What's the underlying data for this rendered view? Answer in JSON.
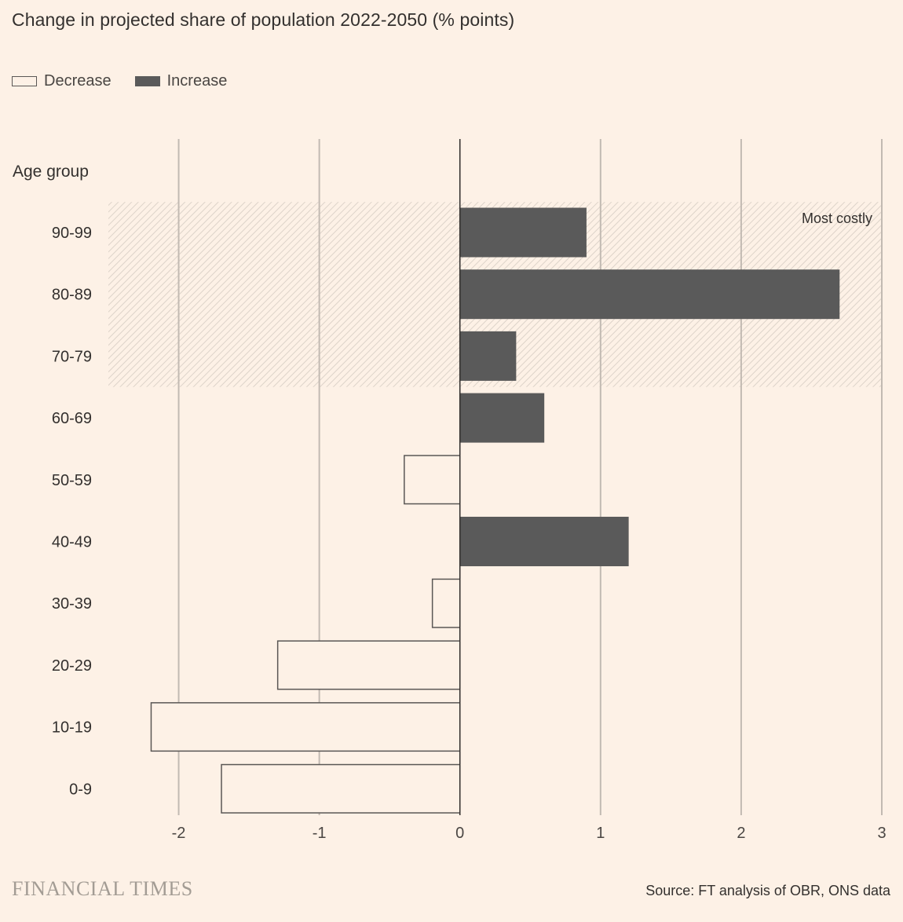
{
  "chart_data": {
    "type": "bar",
    "orientation": "horizontal",
    "title": "Change in projected share of population 2022-2050 (% points)",
    "ylabel": "Age group",
    "xlabel": "",
    "categories": [
      "90-99",
      "80-89",
      "70-79",
      "60-69",
      "50-59",
      "40-49",
      "30-39",
      "20-29",
      "10-19",
      "0-9"
    ],
    "values": [
      0.9,
      2.7,
      0.4,
      0.6,
      -0.4,
      1.2,
      -0.2,
      -1.3,
      -2.2,
      -1.7
    ],
    "xlim": [
      -2.5,
      3
    ],
    "xticks": [
      -2,
      -1,
      0,
      1,
      2,
      3
    ],
    "xtick_labels": [
      "-2",
      "-1",
      "0",
      "1",
      "2",
      "3"
    ],
    "legend": [
      {
        "name": "Decrease",
        "style": "outline"
      },
      {
        "name": "Increase",
        "style": "filled"
      }
    ],
    "highlight": {
      "label": "Most costly",
      "categories": [
        "90-99",
        "80-89",
        "70-79"
      ]
    },
    "colors": {
      "background": "#fdf1e6",
      "increase": "#5a5a5a",
      "decrease_fill": "#fdf1e6",
      "decrease_stroke": "#5a5755",
      "grid": "#c2bab2",
      "zero_line": "#33302e",
      "highlight_hatch": "#d9cfc5"
    }
  },
  "footer": {
    "brand": "FINANCIAL TIMES",
    "source": "Source: FT analysis of OBR, ONS data"
  }
}
